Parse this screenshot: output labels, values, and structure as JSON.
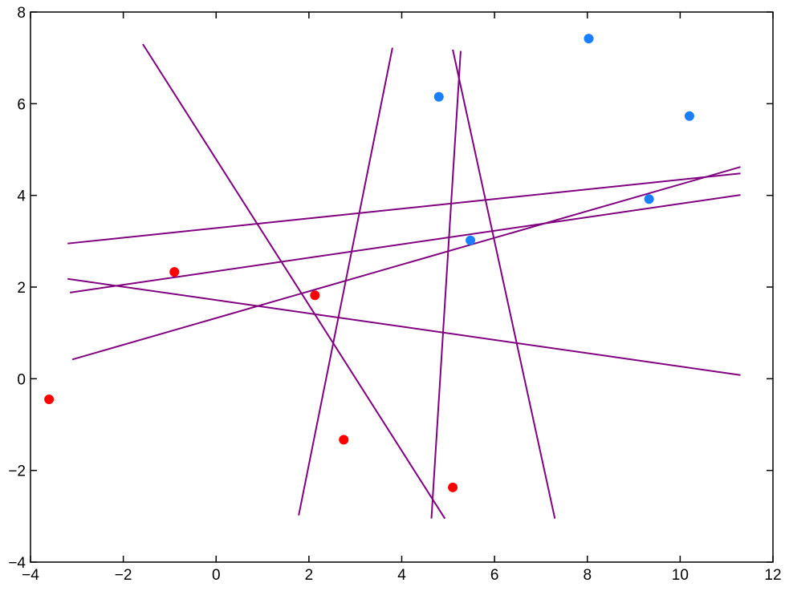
{
  "chart_data": {
    "type": "scatter",
    "xlim": [
      -4,
      12
    ],
    "ylim": [
      -4,
      8
    ],
    "grid": false,
    "x_ticks": [
      -4,
      -2,
      0,
      2,
      4,
      6,
      8,
      10,
      12
    ],
    "y_ticks": [
      -4,
      -2,
      0,
      2,
      4,
      6,
      8
    ],
    "x_tick_labels": [
      "−4",
      "−2",
      "0",
      "2",
      "4",
      "6",
      "8",
      "10",
      "12"
    ],
    "y_tick_labels": [
      "−4",
      "−2",
      "0",
      "2",
      "4",
      "6",
      "8"
    ],
    "point_groups": [
      {
        "color": "#ff0000",
        "points": [
          [
            -3.6,
            -0.45
          ],
          [
            -0.9,
            2.33
          ],
          [
            2.13,
            1.82
          ],
          [
            2.75,
            -1.33
          ],
          [
            5.1,
            -2.37
          ]
        ]
      },
      {
        "color": "#1a7fff",
        "points": [
          [
            4.8,
            6.15
          ],
          [
            8.03,
            7.42
          ],
          [
            10.2,
            5.73
          ],
          [
            9.33,
            3.92
          ],
          [
            5.48,
            3.02
          ]
        ]
      }
    ],
    "lines": {
      "color": "#800080",
      "segments": [
        [
          [
            -1.58,
            7.3
          ],
          [
            4.93,
            -3.05
          ]
        ],
        [
          [
            1.78,
            -2.98
          ],
          [
            3.8,
            7.22
          ]
        ],
        [
          [
            4.64,
            -3.05
          ],
          [
            5.27,
            7.15
          ]
        ],
        [
          [
            5.1,
            7.18
          ],
          [
            7.3,
            -3.05
          ]
        ],
        [
          [
            -3.2,
            2.95
          ],
          [
            11.3,
            4.48
          ]
        ],
        [
          [
            -3.15,
            1.88
          ],
          [
            11.3,
            4.01
          ]
        ],
        [
          [
            -3.1,
            0.42
          ],
          [
            11.3,
            4.62
          ]
        ],
        [
          [
            -3.2,
            2.18
          ],
          [
            11.3,
            0.08
          ]
        ]
      ]
    }
  }
}
